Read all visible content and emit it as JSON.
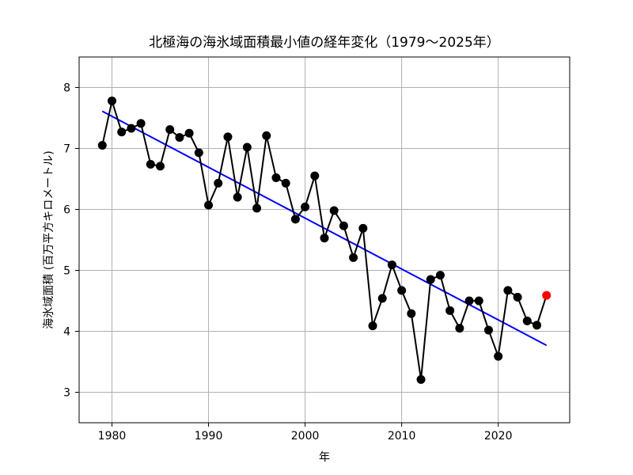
{
  "chart_data": {
    "type": "line",
    "title": "北極海の海氷域面積最小値の経年変化（1979〜2025年）",
    "xlabel": "年",
    "ylabel": "海氷域面積 (百万平方キロメートル)",
    "xlim": [
      1976.6,
      2027.4
    ],
    "ylim": [
      2.5,
      8.5
    ],
    "xticks": [
      1980,
      1990,
      2000,
      2010,
      2020
    ],
    "yticks": [
      3,
      4,
      5,
      6,
      7,
      8
    ],
    "grid": true,
    "legend": "none",
    "colors": {
      "series": "#000000",
      "trend": "#0000ff",
      "highlight": "#ff0000",
      "grid": "#b0b0b0"
    },
    "series": [
      {
        "x": [
          1979,
          1980,
          1981,
          1982,
          1983,
          1984,
          1985,
          1986,
          1987,
          1988,
          1989,
          1990,
          1991,
          1992,
          1993,
          1994,
          1995,
          1996,
          1997,
          1998,
          1999,
          2000,
          2001,
          2002,
          2003,
          2004,
          2005,
          2006,
          2007,
          2008,
          2009,
          2010,
          2011,
          2012,
          2013,
          2014,
          2015,
          2016,
          2017,
          2018,
          2019,
          2020,
          2021,
          2022,
          2023,
          2024
        ],
        "values": [
          7.05,
          7.78,
          7.27,
          7.33,
          7.41,
          6.74,
          6.71,
          7.31,
          7.18,
          7.25,
          6.93,
          6.07,
          6.43,
          7.19,
          6.2,
          7.02,
          6.02,
          7.21,
          6.52,
          6.43,
          5.84,
          6.04,
          6.55,
          5.53,
          5.98,
          5.73,
          5.21,
          5.69,
          4.09,
          4.54,
          5.09,
          4.67,
          4.29,
          3.21,
          4.85,
          4.92,
          4.34,
          4.05,
          4.5,
          4.5,
          4.02,
          3.59,
          4.67,
          4.56,
          4.17,
          4.1
        ]
      },
      {
        "x": [
          2025
        ],
        "values": [
          4.59
        ]
      }
    ],
    "trend": {
      "x": [
        1979,
        2025
      ],
      "values": [
        7.61,
        3.77
      ]
    }
  }
}
